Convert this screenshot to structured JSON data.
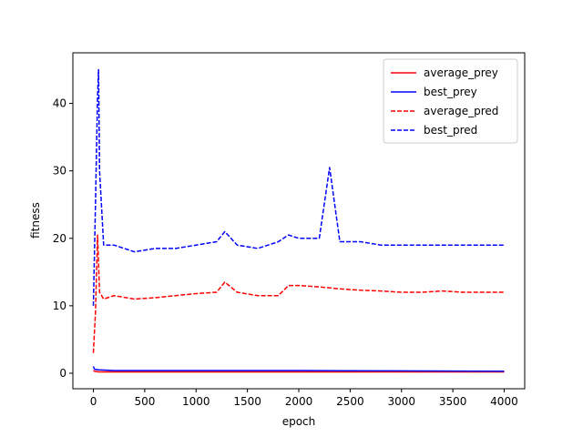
{
  "chart_data": {
    "type": "line",
    "xlabel": "epoch",
    "ylabel": "fitness",
    "xlim": [
      -200,
      4200
    ],
    "ylim": [
      -2.3,
      47.5
    ],
    "xticks": [
      0,
      500,
      1000,
      1500,
      2000,
      2500,
      3000,
      3500,
      4000
    ],
    "yticks": [
      0,
      10,
      20,
      30,
      40
    ],
    "legend_position": "upper-right",
    "series": [
      {
        "name": "average_prey",
        "color": "#ff0000",
        "style": "solid",
        "x": [
          0,
          10,
          50,
          200,
          1000,
          2000,
          3000,
          4000
        ],
        "y": [
          0.4,
          0.3,
          0.2,
          0.2,
          0.2,
          0.2,
          0.2,
          0.2
        ]
      },
      {
        "name": "best_prey",
        "color": "#0000ff",
        "style": "solid",
        "x": [
          0,
          10,
          50,
          200,
          1000,
          2000,
          3000,
          4000
        ],
        "y": [
          1.0,
          0.6,
          0.5,
          0.4,
          0.4,
          0.4,
          0.35,
          0.3
        ]
      },
      {
        "name": "average_pred",
        "color": "#ff0000",
        "style": "dashed",
        "x": [
          0,
          20,
          40,
          60,
          100,
          200,
          400,
          600,
          800,
          1000,
          1200,
          1280,
          1400,
          1600,
          1800,
          1900,
          2000,
          2200,
          2400,
          2600,
          2800,
          3000,
          3200,
          3400,
          3600,
          3800,
          4000
        ],
        "y": [
          3.0,
          9.0,
          20.5,
          12.0,
          11.0,
          11.5,
          11.0,
          11.2,
          11.5,
          11.8,
          12.0,
          13.5,
          12.0,
          11.5,
          11.5,
          13.0,
          13.0,
          12.8,
          12.5,
          12.3,
          12.2,
          12.0,
          12.0,
          12.2,
          12.0,
          12.0,
          12.0
        ]
      },
      {
        "name": "best_pred",
        "color": "#0000ff",
        "style": "dashed",
        "x": [
          0,
          20,
          40,
          50,
          60,
          100,
          200,
          400,
          600,
          800,
          1000,
          1200,
          1280,
          1400,
          1600,
          1800,
          1900,
          2000,
          2200,
          2300,
          2400,
          2600,
          2800,
          3000,
          3200,
          3400,
          3600,
          3800,
          4000
        ],
        "y": [
          10.0,
          25.0,
          41.0,
          45.0,
          30.0,
          19.0,
          19.0,
          18.0,
          18.5,
          18.5,
          19.0,
          19.5,
          21.0,
          19.0,
          18.5,
          19.5,
          20.5,
          20.0,
          20.0,
          30.5,
          19.5,
          19.5,
          19.0,
          19.0,
          19.0,
          19.0,
          19.0,
          19.0,
          19.0
        ]
      }
    ]
  }
}
